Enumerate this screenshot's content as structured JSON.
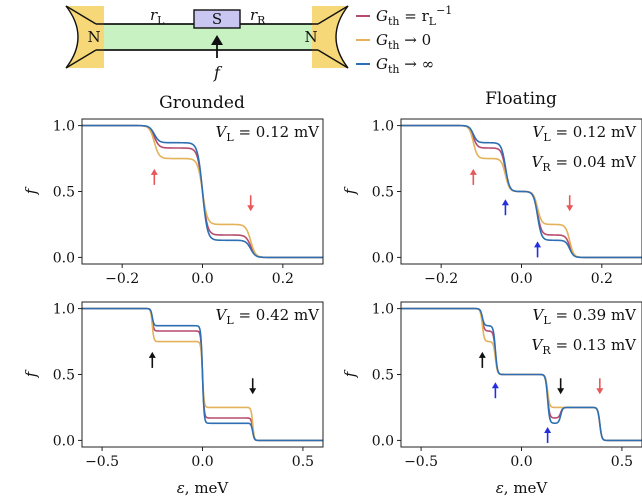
{
  "schematic": {
    "label_left_lead": "N",
    "label_right_lead": "N",
    "label_superconductor": "S",
    "label_r_left": "r",
    "label_r_left_sub": "L",
    "label_r_right": "r",
    "label_r_right_sub": "R",
    "label_f": "f",
    "color_lead": "#f6d878",
    "color_wire": "#c9f2c3",
    "color_superconductor": "#c9c6f2"
  },
  "legend": {
    "entries": [
      {
        "color": "#b64b6d",
        "text_main": "G",
        "text_sub": "th",
        "text_rest": " = r",
        "text_rest_sub": "L",
        "text_rest_sup": "−1"
      },
      {
        "color": "#e3b25a",
        "text_main": "G",
        "text_sub": "th",
        "text_rest": " → 0",
        "text_rest_sub": "",
        "text_rest_sup": ""
      },
      {
        "color": "#2d6fb2",
        "text_main": "G",
        "text_sub": "th",
        "text_rest": " → ∞",
        "text_rest_sub": "",
        "text_rest_sup": ""
      }
    ]
  },
  "column_titles": {
    "left": "Grounded",
    "right": "Floating"
  },
  "colors": {
    "red_arrow": "#e8585a",
    "blue_arrow": "#2430e0",
    "black_arrow": "#111111"
  },
  "chart_data": [
    {
      "id": "grounded-top",
      "type": "line",
      "xlim": [
        -0.3,
        0.3
      ],
      "ylim": [
        -0.05,
        1.05
      ],
      "xticks": [
        "-0.2",
        "0.0",
        "0.2"
      ],
      "xtick_values": [
        -0.2,
        0.0,
        0.2
      ],
      "yticks": [
        "0.0",
        "0.5",
        "1.0"
      ],
      "ytick_values": [
        0.0,
        0.5,
        1.0
      ],
      "ylabel": "f",
      "xlabel": "",
      "annotations": [
        {
          "text": "V",
          "sub": "L",
          "rest": " = 0.12 mV"
        }
      ],
      "smooth_width": 0.006,
      "series": [
        {
          "color": "#b64b6d",
          "steps": [
            [
              -0.12,
              0.83
            ],
            [
              0.0,
              0.17
            ],
            [
              0.12,
              0.0
            ]
          ]
        },
        {
          "color": "#e3b25a",
          "steps": [
            [
              -0.12,
              0.75
            ],
            [
              0.0,
              0.25
            ],
            [
              0.12,
              0.0
            ]
          ]
        },
        {
          "color": "#2d6fb2",
          "steps": [
            [
              -0.12,
              0.87
            ],
            [
              0.0,
              0.13
            ],
            [
              0.12,
              0.0
            ]
          ]
        }
      ],
      "arrows": [
        {
          "x": -0.12,
          "y": 0.55,
          "dir": "up",
          "color": "red"
        },
        {
          "x": 0.12,
          "y": 0.35,
          "dir": "down",
          "color": "red"
        }
      ]
    },
    {
      "id": "floating-top",
      "type": "line",
      "xlim": [
        -0.3,
        0.3
      ],
      "ylim": [
        -0.05,
        1.05
      ],
      "xticks": [
        "-0.2",
        "0.0",
        "0.2"
      ],
      "xtick_values": [
        -0.2,
        0.0,
        0.2
      ],
      "yticks": [
        "0.0",
        "0.5",
        "1.0"
      ],
      "ytick_values": [
        0.0,
        0.5,
        1.0
      ],
      "ylabel": "f",
      "xlabel": "",
      "annotations": [
        {
          "text": "V",
          "sub": "L",
          "rest": " = 0.12 mV"
        },
        {
          "text": "V",
          "sub": "R",
          "rest": " = 0.04 mV"
        }
      ],
      "smooth_width": 0.005,
      "series": [
        {
          "color": "#b64b6d",
          "steps": [
            [
              -0.12,
              0.83
            ],
            [
              -0.04,
              0.5
            ],
            [
              0.04,
              0.17
            ],
            [
              0.12,
              0.0
            ]
          ]
        },
        {
          "color": "#e3b25a",
          "steps": [
            [
              -0.12,
              0.75
            ],
            [
              -0.04,
              0.5
            ],
            [
              0.04,
              0.25
            ],
            [
              0.12,
              0.0
            ]
          ]
        },
        {
          "color": "#2d6fb2",
          "steps": [
            [
              -0.12,
              0.87
            ],
            [
              -0.04,
              0.5
            ],
            [
              0.04,
              0.13
            ],
            [
              0.12,
              0.0
            ]
          ]
        }
      ],
      "arrows": [
        {
          "x": -0.12,
          "y": 0.55,
          "dir": "up",
          "color": "red"
        },
        {
          "x": 0.12,
          "y": 0.35,
          "dir": "down",
          "color": "red"
        },
        {
          "x": -0.04,
          "y": 0.32,
          "dir": "up",
          "color": "blue"
        },
        {
          "x": 0.04,
          "y": 0.0,
          "dir": "up",
          "color": "blue"
        }
      ]
    },
    {
      "id": "grounded-bottom",
      "type": "line",
      "xlim": [
        -0.6,
        0.6
      ],
      "ylim": [
        -0.05,
        1.05
      ],
      "xticks": [
        "-0.5",
        "0.0",
        "0.5"
      ],
      "xtick_values": [
        -0.5,
        0.0,
        0.5
      ],
      "yticks": [
        "0.0",
        "0.5",
        "1.0"
      ],
      "ytick_values": [
        0.0,
        0.5,
        1.0
      ],
      "ylabel": "f",
      "xlabel": "ε, meV",
      "annotations": [
        {
          "text": "V",
          "sub": "L",
          "rest": " = 0.42 mV"
        }
      ],
      "smooth_width": 0.004,
      "series": [
        {
          "color": "#b64b6d",
          "steps": [
            [
              -0.25,
              0.83
            ],
            [
              0.0,
              0.17
            ],
            [
              0.25,
              0.0
            ]
          ]
        },
        {
          "color": "#e3b25a",
          "steps": [
            [
              -0.25,
              0.75
            ],
            [
              0.0,
              0.25
            ],
            [
              0.25,
              0.0
            ]
          ]
        },
        {
          "color": "#2d6fb2",
          "steps": [
            [
              -0.25,
              0.87
            ],
            [
              0.0,
              0.13
            ],
            [
              0.25,
              0.0
            ]
          ]
        }
      ],
      "arrows": [
        {
          "x": -0.25,
          "y": 0.55,
          "dir": "up",
          "color": "black"
        },
        {
          "x": 0.25,
          "y": 0.35,
          "dir": "down",
          "color": "black"
        }
      ]
    },
    {
      "id": "floating-bottom",
      "type": "line",
      "xlim": [
        -0.6,
        0.6
      ],
      "ylim": [
        -0.05,
        1.05
      ],
      "xticks": [
        "-0.5",
        "0.0",
        "0.5"
      ],
      "xtick_values": [
        -0.5,
        0.0,
        0.5
      ],
      "yticks": [
        "0.0",
        "0.5",
        "1.0"
      ],
      "ytick_values": [
        0.0,
        0.5,
        1.0
      ],
      "ylabel": "f",
      "xlabel": "ε, meV",
      "annotations": [
        {
          "text": "V",
          "sub": "L",
          "rest": " = 0.39 mV"
        },
        {
          "text": "V",
          "sub": "R",
          "rest": " = 0.13 mV"
        }
      ],
      "smooth_width": 0.005,
      "series": [
        {
          "color": "#b64b6d",
          "steps": [
            [
              -0.195,
              0.83
            ],
            [
              -0.13,
              0.5
            ],
            [
              0.13,
              0.17
            ],
            [
              0.195,
              0.25
            ],
            [
              0.39,
              0.0
            ]
          ]
        },
        {
          "color": "#e3b25a",
          "steps": [
            [
              -0.195,
              0.75
            ],
            [
              -0.13,
              0.5
            ],
            [
              0.13,
              0.25
            ],
            [
              0.195,
              0.25
            ],
            [
              0.39,
              0.0
            ]
          ]
        },
        {
          "color": "#2d6fb2",
          "steps": [
            [
              -0.195,
              0.87
            ],
            [
              -0.13,
              0.5
            ],
            [
              0.13,
              0.13
            ],
            [
              0.195,
              0.25
            ],
            [
              0.39,
              0.0
            ]
          ]
        }
      ],
      "arrows": [
        {
          "x": -0.195,
          "y": 0.55,
          "dir": "up",
          "color": "black"
        },
        {
          "x": 0.195,
          "y": 0.35,
          "dir": "down",
          "color": "black"
        },
        {
          "x": -0.13,
          "y": 0.32,
          "dir": "up",
          "color": "blue"
        },
        {
          "x": 0.13,
          "y": -0.02,
          "dir": "up",
          "color": "blue"
        },
        {
          "x": 0.39,
          "y": 0.35,
          "dir": "down",
          "color": "red"
        }
      ]
    }
  ]
}
